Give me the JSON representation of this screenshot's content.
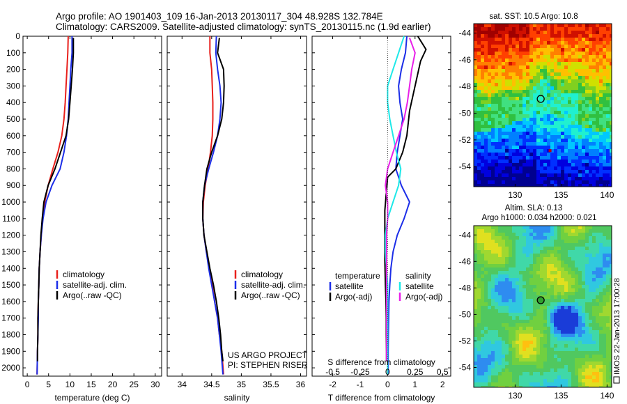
{
  "header": {
    "line1": "Argo profile: AO 1901403_109 16-Jan-2013 20130117_304 48.928S 132.784E",
    "line2": "Climatology: CARS2009. Satellite-adjusted climatology: synTS_20130115.nc (1.9d earlier)"
  },
  "colors": {
    "climatology": "#e8201c",
    "satellite": "#1c2ee8",
    "argo": "#000000",
    "satellite_salinity": "#1ee8e8",
    "argo_salinity": "#e81ee8"
  },
  "chart_data": [
    {
      "type": "line",
      "panel": "temperature",
      "xlabel": "temperature (deg C)",
      "xlim": [
        -1,
        31.5
      ],
      "xticks": [
        "0",
        "5",
        "10",
        "15",
        "20",
        "25",
        "30"
      ],
      "xtick_values": [
        0,
        5,
        10,
        15,
        20,
        25,
        30
      ],
      "ylim": [
        0,
        2050
      ],
      "yticks": [
        "0",
        "100",
        "200",
        "300",
        "400",
        "500",
        "600",
        "700",
        "800",
        "900",
        "1000",
        "1100",
        "1200",
        "1300",
        "1400",
        "1500",
        "1600",
        "1700",
        "1800",
        "1900",
        "2000"
      ],
      "ytick_values": [
        0,
        100,
        200,
        300,
        400,
        500,
        600,
        700,
        800,
        900,
        1000,
        1100,
        1200,
        1300,
        1400,
        1500,
        1600,
        1700,
        1800,
        1900,
        2000
      ],
      "legend": [
        "climatology",
        "satellite-adj. clim.",
        "Argo(..raw -QC)"
      ],
      "series": [
        {
          "name": "climatology",
          "color": "#e8201c",
          "points": [
            [
              9.6,
              0
            ],
            [
              9.5,
              100
            ],
            [
              9.3,
              200
            ],
            [
              9.1,
              300
            ],
            [
              8.9,
              400
            ],
            [
              8.6,
              500
            ],
            [
              8.1,
              600
            ],
            [
              7.2,
              700
            ],
            [
              6.0,
              800
            ],
            [
              4.9,
              900
            ],
            [
              4.1,
              1000
            ],
            [
              3.6,
              1100
            ],
            [
              3.3,
              1200
            ],
            [
              3.0,
              1300
            ],
            [
              2.8,
              1400
            ],
            [
              2.7,
              1500
            ],
            [
              2.6,
              1600
            ],
            [
              2.5,
              1700
            ],
            [
              2.5,
              1800
            ],
            [
              2.4,
              1900
            ],
            [
              2.3,
              2040
            ]
          ]
        },
        {
          "name": "satellite-adj. clim.",
          "color": "#1c2ee8",
          "points": [
            [
              10.5,
              0
            ],
            [
              10.5,
              100
            ],
            [
              10.2,
              200
            ],
            [
              10.0,
              300
            ],
            [
              9.8,
              400
            ],
            [
              9.6,
              500
            ],
            [
              9.2,
              600
            ],
            [
              8.6,
              700
            ],
            [
              7.7,
              800
            ],
            [
              5.8,
              900
            ],
            [
              4.4,
              1000
            ],
            [
              3.7,
              1100
            ],
            [
              3.3,
              1200
            ],
            [
              3.0,
              1300
            ],
            [
              2.8,
              1400
            ],
            [
              2.7,
              1500
            ],
            [
              2.6,
              1600
            ],
            [
              2.6,
              1700
            ],
            [
              2.5,
              1800
            ],
            [
              2.4,
              1900
            ],
            [
              2.3,
              2040
            ]
          ]
        },
        {
          "name": "Argo(..raw -QC)",
          "color": "#000000",
          "points": [
            [
              10.8,
              10
            ],
            [
              10.8,
              100
            ],
            [
              10.6,
              200
            ],
            [
              10.3,
              300
            ],
            [
              10.0,
              400
            ],
            [
              9.7,
              500
            ],
            [
              9.1,
              600
            ],
            [
              7.8,
              700
            ],
            [
              6.5,
              800
            ],
            [
              4.9,
              900
            ],
            [
              3.9,
              1000
            ],
            [
              3.5,
              1100
            ],
            [
              3.2,
              1200
            ],
            [
              3.0,
              1300
            ],
            [
              2.8,
              1400
            ],
            [
              2.7,
              1500
            ],
            [
              2.6,
              1600
            ],
            [
              2.5,
              1700
            ],
            [
              2.5,
              1800
            ],
            [
              2.4,
              1900
            ],
            [
              2.4,
              1960
            ]
          ]
        }
      ]
    },
    {
      "type": "line",
      "panel": "salinity",
      "xlabel": "salinity",
      "xlim": [
        33.75,
        36.1
      ],
      "xticks": [
        "34",
        "34.5",
        "35",
        "35.5",
        "36"
      ],
      "xtick_values": [
        34,
        34.5,
        35,
        35.5,
        36
      ],
      "ylim": [
        0,
        2050
      ],
      "legend": [
        "climatology",
        "satellite-adj. clim.",
        "Argo(..raw -QC)"
      ],
      "annotation": [
        "US ARGO PROJECT",
        "PI: STEPHEN RISER"
      ],
      "series": [
        {
          "name": "climatology",
          "color": "#e8201c",
          "points": [
            [
              34.47,
              0
            ],
            [
              34.47,
              100
            ],
            [
              34.5,
              200
            ],
            [
              34.51,
              300
            ],
            [
              34.52,
              400
            ],
            [
              34.52,
              500
            ],
            [
              34.51,
              600
            ],
            [
              34.48,
              700
            ],
            [
              34.44,
              800
            ],
            [
              34.39,
              900
            ],
            [
              34.36,
              1000
            ],
            [
              34.35,
              1100
            ],
            [
              34.37,
              1200
            ],
            [
              34.41,
              1300
            ],
            [
              34.46,
              1400
            ],
            [
              34.51,
              1500
            ],
            [
              34.55,
              1600
            ],
            [
              34.6,
              1700
            ],
            [
              34.63,
              1800
            ],
            [
              34.67,
              1900
            ],
            [
              34.7,
              2040
            ]
          ]
        },
        {
          "name": "satellite-adj. clim.",
          "color": "#1c2ee8",
          "points": [
            [
              34.58,
              0
            ],
            [
              34.57,
              100
            ],
            [
              34.6,
              200
            ],
            [
              34.64,
              300
            ],
            [
              34.66,
              400
            ],
            [
              34.64,
              500
            ],
            [
              34.6,
              600
            ],
            [
              34.53,
              700
            ],
            [
              34.45,
              800
            ],
            [
              34.38,
              900
            ],
            [
              34.35,
              1000
            ],
            [
              34.35,
              1100
            ],
            [
              34.37,
              1200
            ],
            [
              34.41,
              1300
            ],
            [
              34.45,
              1400
            ],
            [
              34.5,
              1500
            ],
            [
              34.55,
              1600
            ],
            [
              34.6,
              1700
            ],
            [
              34.63,
              1800
            ],
            [
              34.66,
              1900
            ],
            [
              34.69,
              2040
            ]
          ]
        },
        {
          "name": "Argo(..raw -QC)",
          "color": "#000000",
          "points": [
            [
              34.63,
              10
            ],
            [
              34.6,
              100
            ],
            [
              34.7,
              200
            ],
            [
              34.71,
              300
            ],
            [
              34.7,
              400
            ],
            [
              34.67,
              500
            ],
            [
              34.6,
              600
            ],
            [
              34.5,
              700
            ],
            [
              34.42,
              800
            ],
            [
              34.38,
              900
            ],
            [
              34.35,
              1000
            ],
            [
              34.35,
              1100
            ],
            [
              34.37,
              1200
            ],
            [
              34.42,
              1300
            ],
            [
              34.47,
              1400
            ],
            [
              34.53,
              1500
            ],
            [
              34.58,
              1600
            ],
            [
              34.62,
              1700
            ],
            [
              34.65,
              1800
            ],
            [
              34.67,
              1900
            ],
            [
              34.69,
              1960
            ]
          ]
        }
      ]
    },
    {
      "type": "line",
      "panel": "differences",
      "xlabel": "T difference from climatology",
      "xlabel_top": "S difference from climatology",
      "xlim": [
        -2.75,
        2.3
      ],
      "xticks": [
        "-2",
        "-1",
        "0",
        "1",
        "2"
      ],
      "xtick_values": [
        -2,
        -1,
        0,
        1,
        2
      ],
      "sticks": [
        "-0.5",
        "-0.25",
        "0",
        "0.25",
        "0.5"
      ],
      "stick_values": [
        -0.5,
        -0.25,
        0,
        0.25,
        0.5
      ],
      "s_scale": 4,
      "ylim": [
        0,
        2050
      ],
      "legend_temperature": {
        "title": "temperature",
        "items": [
          "satellite",
          "Argo(-adj)"
        ]
      },
      "legend_salinity": {
        "title": "salinity",
        "items": [
          "satellite",
          "Argo(-adj)"
        ]
      },
      "series": [
        {
          "name": "temperature satellite",
          "color": "#1c2ee8",
          "points": [
            [
              0.7,
              0
            ],
            [
              0.65,
              100
            ],
            [
              0.5,
              200
            ],
            [
              0.4,
              300
            ],
            [
              0.45,
              400
            ],
            [
              0.55,
              500
            ],
            [
              0.45,
              600
            ],
            [
              0.35,
              700
            ],
            [
              0.3,
              800
            ],
            [
              0.5,
              900
            ],
            [
              0.8,
              1000
            ],
            [
              0.6,
              1100
            ],
            [
              0.35,
              1200
            ],
            [
              0.2,
              1300
            ],
            [
              0.12,
              1400
            ],
            [
              0.08,
              1500
            ],
            [
              0.05,
              1600
            ],
            [
              0.04,
              1700
            ],
            [
              0.03,
              1800
            ],
            [
              0.02,
              1900
            ],
            [
              0.02,
              2040
            ]
          ]
        },
        {
          "name": "temperature Argo(-adj)",
          "color": "#000000",
          "points": [
            [
              1.1,
              0
            ],
            [
              1.4,
              80
            ],
            [
              1.2,
              150
            ],
            [
              1.0,
              300
            ],
            [
              0.8,
              450
            ],
            [
              0.7,
              600
            ],
            [
              0.55,
              700
            ],
            [
              0.3,
              800
            ],
            [
              0.0,
              850
            ],
            [
              -0.05,
              950
            ],
            [
              -0.1,
              1050
            ],
            [
              -0.1,
              1200
            ],
            [
              -0.1,
              1350
            ],
            [
              -0.08,
              1500
            ],
            [
              -0.06,
              1600
            ],
            [
              -0.05,
              1700
            ],
            [
              -0.05,
              1800
            ],
            [
              -0.04,
              1900
            ],
            [
              -0.04,
              1960
            ]
          ]
        },
        {
          "name": "salinity satellite",
          "color": "#1ee8e8",
          "points": [
            [
              0.15,
              0
            ],
            [
              0.1,
              100
            ],
            [
              0.05,
              200
            ],
            [
              0.0,
              300
            ],
            [
              0.0,
              400
            ],
            [
              0.02,
              500
            ],
            [
              0.05,
              600
            ],
            [
              0.08,
              700
            ],
            [
              0.12,
              800
            ],
            [
              0.1,
              900
            ],
            [
              0.05,
              1000
            ],
            [
              0.0,
              1100
            ],
            [
              -0.02,
              1200
            ],
            [
              -0.02,
              1300
            ],
            [
              -0.01,
              1400
            ],
            [
              0.0,
              1500
            ],
            [
              0.0,
              1600
            ],
            [
              0.0,
              1700
            ],
            [
              0.0,
              1800
            ],
            [
              0.0,
              1900
            ],
            [
              0.0,
              2040
            ]
          ]
        },
        {
          "name": "salinity Argo(-adj)",
          "color": "#e81ee8",
          "points": [
            [
              0.2,
              10
            ],
            [
              0.25,
              100
            ],
            [
              0.22,
              200
            ],
            [
              0.2,
              300
            ],
            [
              0.18,
              400
            ],
            [
              0.15,
              500
            ],
            [
              0.1,
              600
            ],
            [
              0.05,
              700
            ],
            [
              0.0,
              800
            ],
            [
              -0.02,
              900
            ],
            [
              0.0,
              1000
            ],
            [
              0.0,
              1100
            ],
            [
              -0.01,
              1200
            ],
            [
              -0.01,
              1300
            ],
            [
              -0.01,
              1400
            ],
            [
              -0.01,
              1500
            ],
            [
              -0.01,
              1600
            ],
            [
              -0.01,
              1700
            ],
            [
              -0.01,
              1800
            ],
            [
              -0.01,
              1900
            ],
            [
              -0.01,
              1960
            ]
          ]
        }
      ]
    },
    {
      "type": "heatmap",
      "panel": "sst-map",
      "title": "sat. SST: 10.5 Argo: 10.8",
      "xticks": [
        "130",
        "135",
        "140"
      ],
      "xtick_values": [
        130,
        135,
        140
      ],
      "yticks": [
        "-44",
        "-46",
        "-48",
        "-50",
        "-52",
        "-54"
      ],
      "ytick_values": [
        -44,
        -46,
        -48,
        -50,
        -52,
        -54
      ],
      "xlim": [
        125.5,
        140.5
      ],
      "ylim": [
        -55.5,
        -43.3
      ],
      "marker_lon": 132.784,
      "marker_lat": -48.928,
      "extra_marker_lon": 133.8,
      "extra_marker_lat": -52.8
    },
    {
      "type": "heatmap",
      "panel": "sla-map",
      "title": "Altim. SLA: 0.13",
      "subtitle": "Argo h1000: 0.034 h2000: 0.021",
      "xticks": [
        "130",
        "135",
        "140"
      ],
      "xtick_values": [
        130,
        135,
        140
      ],
      "yticks": [
        "-44",
        "-46",
        "-48",
        "-50",
        "-52",
        "-54"
      ],
      "ytick_values": [
        -44,
        -46,
        -48,
        -50,
        -52,
        -54
      ],
      "xlim": [
        125.5,
        140.5
      ],
      "ylim": [
        -55.5,
        -43.3
      ],
      "marker_lon": 132.784,
      "marker_lat": -48.928
    }
  ],
  "side_stamp": "IMOS 22-Jan-2013 17:00:28"
}
